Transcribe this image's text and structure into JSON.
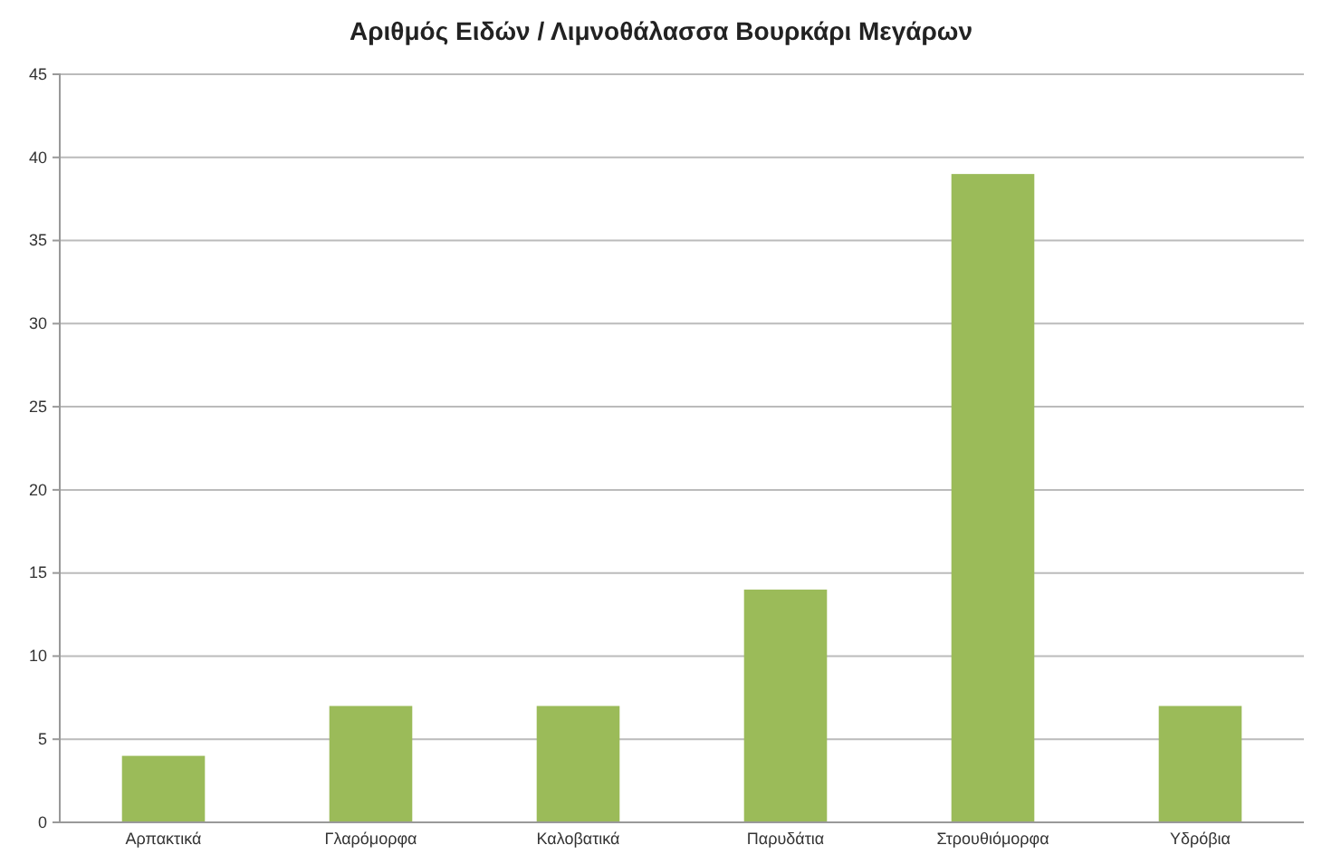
{
  "chart_data": {
    "type": "bar",
    "title": "Αριθμός Ειδών /  Λιμνοθάλασσα Βουρκάρι Μεγάρων",
    "categories": [
      "Αρπακτικά",
      "Γλαρόμορφα",
      "Καλοβατικά",
      "Παρυδάτια",
      "Στρουθιόμορφα",
      "Υδρόβια"
    ],
    "values": [
      4,
      7,
      7,
      14,
      39,
      7
    ],
    "color": "#9bbb59",
    "ylim": [
      0,
      45
    ],
    "yticks": [
      0,
      5,
      10,
      15,
      20,
      25,
      30,
      35,
      40,
      45
    ],
    "grid": "y"
  }
}
